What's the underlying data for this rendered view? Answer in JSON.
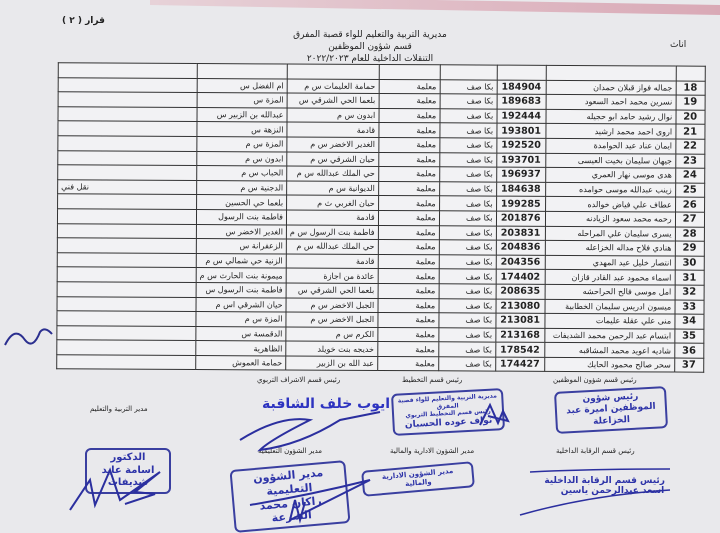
{
  "header": {
    "decision": "قرار ( ٢ )",
    "line1": "مديرية التربية والتعليم للواء قصبة المفرق",
    "line2": "قسم شؤون الموظفين",
    "line3": "التنقلات الداخلية للعام ٢٠٢٢/٢٠٢٣",
    "side_note": "اناث"
  },
  "rows": [
    {
      "n": "18",
      "name": "جماله فواز قبلان حمدان",
      "id": "184904",
      "spec": "بكا صف",
      "job": "معلمة",
      "from": "حمامة العليمات س م",
      "to": "ام الفضل س",
      "note": ""
    },
    {
      "n": "19",
      "name": "نسرين محمد احمد السعود",
      "id": "189683",
      "spec": "بكا صف",
      "job": "معلمة",
      "from": "بلعما الحي الشرقي س",
      "to": "المزة س",
      "note": ""
    },
    {
      "n": "20",
      "name": "نوال رشيد حامد ابو حجيله",
      "id": "192444",
      "spec": "بكا صف",
      "job": "معلمة",
      "from": "ابدون س م",
      "to": "عبدالله بن الزبير س",
      "note": ""
    },
    {
      "n": "21",
      "name": "اروى احمد محمد ارشيد",
      "id": "193801",
      "spec": "بكا صف",
      "job": "معلمة",
      "from": "قادمة",
      "to": "النزهة س",
      "note": ""
    },
    {
      "n": "22",
      "name": "ايمان عناد عيد الحوامدة",
      "id": "192520",
      "spec": "بكا صف",
      "job": "معلمة",
      "from": "الغدير الاخضر س م",
      "to": "المزة س م",
      "note": ""
    },
    {
      "n": "23",
      "name": "جيهان سليمان بخيت العيسى",
      "id": "193701",
      "spec": "بكا صف",
      "job": "معلمة",
      "from": "حيان الشرقي س م",
      "to": "ابدون س م",
      "note": ""
    },
    {
      "n": "24",
      "name": "هدى موسى نهار العمري",
      "id": "196937",
      "spec": "بكا صف",
      "job": "معلمة",
      "from": "حي الملك عبدالله س م",
      "to": "الحباب س م",
      "note": ""
    },
    {
      "n": "25",
      "name": "زينب عبدالله موسى حوامده",
      "id": "184638",
      "spec": "بكا صف",
      "job": "معلمة",
      "from": "الديوانية س م",
      "to": "الدجنية س م",
      "note": "نقل فني"
    },
    {
      "n": "26",
      "name": "عطاف علي فياض خوالده",
      "id": "199285",
      "spec": "بكا صف",
      "job": "معلمة",
      "from": "حيان الغربي ث م",
      "to": "بلعما حي الحسين",
      "note": ""
    },
    {
      "n": "27",
      "name": "رحمه محمد سعود الزيادنه",
      "id": "201876",
      "spec": "بكا صف",
      "job": "معلمة",
      "from": "قادمة",
      "to": "فاطمة بنت الرسول",
      "note": ""
    },
    {
      "n": "28",
      "name": "يسرى سليمان علي المراحله",
      "id": "203831",
      "spec": "بكا صف",
      "job": "معلمة",
      "from": "فاطمة بنت الرسول س م",
      "to": "الغدير الاخضر س",
      "note": ""
    },
    {
      "n": "29",
      "name": "هنادي فلاح مداله الخزاعله",
      "id": "204836",
      "spec": "بكا صف",
      "job": "معلمة",
      "from": "حي الملك عبدالله س م",
      "to": "الزعفرانة س",
      "note": ""
    },
    {
      "n": "30",
      "name": "انتصار خليل عيد المهدي",
      "id": "204356",
      "spec": "بكا صف",
      "job": "معلمة",
      "from": "قادمة",
      "to": "الزنية حي شمالي س م",
      "note": ""
    },
    {
      "n": "31",
      "name": "اسماء محمود عبد القادر قازان",
      "id": "174402",
      "spec": "بكا صف",
      "job": "معلمة",
      "from": "عائدة من اجازة",
      "to": "ميمونة بنت الحارث س م",
      "note": ""
    },
    {
      "n": "32",
      "name": "امل موسى فالح الحراحشه",
      "id": "208635",
      "spec": "بكا صف",
      "job": "معلمة",
      "from": "بلعما الحي الشرقي س",
      "to": "فاطمة بنت الرسول س",
      "note": ""
    },
    {
      "n": "33",
      "name": "ميسون ادريس سليمان الخطابية",
      "id": "213080",
      "spec": "بكا صف",
      "job": "معلمة",
      "from": "الجبل الاخضر س م",
      "to": "حيان الشرقي اس م",
      "note": ""
    },
    {
      "n": "34",
      "name": "منى علي عقلة عليمات",
      "id": "213081",
      "spec": "بكا صف",
      "job": "معلمة",
      "from": "الجبل الاخضر س م",
      "to": "المزة س م",
      "note": ""
    },
    {
      "n": "35",
      "name": "ابتسام عبد الرحمن محمد الشديفات",
      "id": "213168",
      "spec": "بكا صف",
      "job": "معلمة",
      "from": "الكرم س م",
      "to": "الدقمسة س",
      "note": ""
    },
    {
      "n": "36",
      "name": "شاديه اعويد محمد المشاقبه",
      "id": "178542",
      "spec": "بكا صف",
      "job": "معلمة",
      "from": "خديجه بنت خويلد",
      "to": "الظاهرية",
      "note": ""
    },
    {
      "n": "37",
      "name": "سحر صالح محمود الحايك",
      "id": "174427",
      "spec": "بكا صف",
      "job": "معلمة",
      "from": "عبد الله بن الزبير",
      "to": "حمامة العموش",
      "note": ""
    }
  ],
  "signatures": {
    "hr_head": "رئيس قسم شؤون الموظفين",
    "hr_stamp": "رئيس شؤون الموظفين اميرة عبد الخزاعلة",
    "planning_head": "رئيس قسم التخطيط",
    "planning_stamp_1": "مديرية التربية والتعليم للواء قصبة المفرق",
    "planning_stamp_2": "رئيس قسم التخطيط التربوي",
    "planning_stamp_3": "نواف عوده الحسبان",
    "supervision_head": "رئيس قسم الاشراف التربوي",
    "supervision_stamp": "ايوب خلف الشاقبة",
    "director_label": "مدير التربية والتعليم",
    "director_stamp_1": "الدكتور",
    "director_stamp_2": "اسامة عايد شديفات",
    "audit_head": "رئيس قسم الرقابة الداخلية",
    "audit_stamp_1": "رئيس قسم الرقابة الداخلية",
    "audit_stamp_2": "اسعد عبدالرحمن ياسين",
    "admin_label": "مدير الشؤون الادارية والمالية",
    "admin_stamp": "مدير الشؤون الادارية والمالية",
    "edu_label": "مدير الشؤون التعليمية",
    "edu_stamp_1": "مدير الشؤون التعليمية",
    "edu_stamp_2": "راكان محمد الشرعة"
  }
}
